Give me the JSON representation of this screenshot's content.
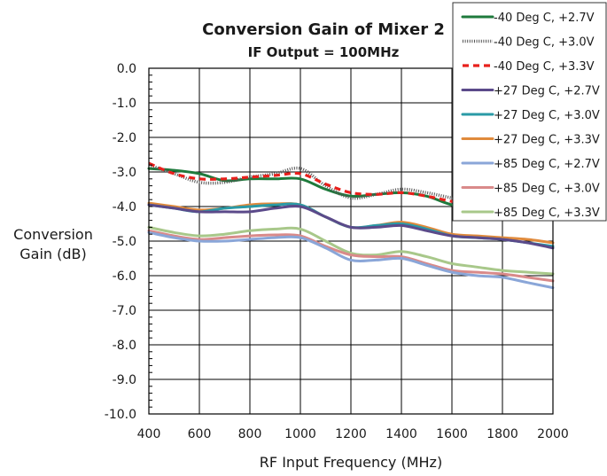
{
  "chart_data": {
    "type": "line",
    "title": "Conversion Gain of Mixer 2",
    "subtitle": "IF Output = 100MHz",
    "xlabel": "RF Input Frequency (MHz)",
    "ylabel_line1": "Conversion",
    "ylabel_line2": "Gain (dB)",
    "xlim": [
      400,
      2000
    ],
    "ylim": [
      -10,
      0
    ],
    "x_ticks": [
      400,
      600,
      800,
      1000,
      1200,
      1400,
      1600,
      1800,
      2000
    ],
    "y_ticks": [
      0,
      -1,
      -2,
      -3,
      -4,
      -5,
      -6,
      -7,
      -8,
      -9,
      -10
    ],
    "x_tick_labels": [
      "400",
      "600",
      "800",
      "1000",
      "1200",
      "1400",
      "1600",
      "1800",
      "2000"
    ],
    "y_tick_labels": [
      "0.0",
      "-1.0",
      "-2.0",
      "-3.0",
      "-4.0",
      "-5.0",
      "-6.0",
      "-7.0",
      "-8.0",
      "-9.0",
      "-10.0"
    ],
    "grid": true,
    "legend_position": "top-right",
    "x": [
      400,
      500,
      600,
      700,
      800,
      900,
      1000,
      1100,
      1200,
      1300,
      1400,
      1500,
      1600,
      1700,
      1800,
      1900,
      2000
    ],
    "series": [
      {
        "name": "-40 Deg C, +2.7V",
        "color": "#1e7a3c",
        "style": "solid",
        "values": [
          -2.9,
          -2.95,
          -3.05,
          -3.25,
          -3.2,
          -3.2,
          -3.2,
          -3.5,
          -3.7,
          -3.65,
          -3.6,
          -3.7,
          -3.95,
          -4.05,
          -4.15,
          -4.25,
          -4.3
        ]
      },
      {
        "name": "-40 Deg C, +3.0V",
        "color": "#555555",
        "style": "dotted",
        "values": [
          -2.8,
          -3.05,
          -3.3,
          -3.3,
          -3.15,
          -3.05,
          -2.9,
          -3.4,
          -3.75,
          -3.65,
          -3.5,
          -3.6,
          -3.75,
          -3.85,
          -3.95,
          -4.05,
          -4.1
        ]
      },
      {
        "name": "-40 Deg C, +3.3V",
        "color": "#e8201c",
        "style": "dashed",
        "values": [
          -2.75,
          -3.05,
          -3.2,
          -3.2,
          -3.15,
          -3.1,
          -3.05,
          -3.35,
          -3.6,
          -3.65,
          -3.6,
          -3.7,
          -3.85,
          -3.95,
          -4.05,
          -4.1,
          -4.15
        ]
      },
      {
        "name": "+27 Deg C, +2.7V",
        "color": "#5b4a8a",
        "style": "solid",
        "values": [
          -3.95,
          -4.05,
          -4.15,
          -4.15,
          -4.15,
          -4.05,
          -4.0,
          -4.3,
          -4.6,
          -4.6,
          -4.55,
          -4.7,
          -4.85,
          -4.9,
          -4.95,
          -5.05,
          -5.2
        ]
      },
      {
        "name": "+27 Deg C, +3.0V",
        "color": "#2a9aa6",
        "style": "solid",
        "values": [
          -3.95,
          -4.05,
          -4.15,
          -4.05,
          -4.0,
          -3.95,
          -3.95,
          -4.3,
          -4.6,
          -4.55,
          -4.5,
          -4.65,
          -4.85,
          -4.9,
          -4.95,
          -5.05,
          -5.15
        ]
      },
      {
        "name": "+27 Deg C, +3.3V",
        "color": "#e08a3c",
        "style": "solid",
        "values": [
          -3.9,
          -4.0,
          -4.1,
          -4.05,
          -3.95,
          -3.92,
          -3.95,
          -4.3,
          -4.6,
          -4.55,
          -4.45,
          -4.6,
          -4.8,
          -4.85,
          -4.9,
          -4.95,
          -5.05
        ]
      },
      {
        "name": "+85 Deg C, +2.7V",
        "color": "#8aa6d8",
        "style": "solid",
        "values": [
          -4.75,
          -4.9,
          -5.0,
          -5.0,
          -4.95,
          -4.9,
          -4.9,
          -5.2,
          -5.55,
          -5.55,
          -5.5,
          -5.7,
          -5.9,
          -6.0,
          -6.05,
          -6.2,
          -6.35
        ]
      },
      {
        "name": "+85 Deg C, +3.0V",
        "color": "#d98a8a",
        "style": "solid",
        "values": [
          -4.7,
          -4.85,
          -4.95,
          -4.9,
          -4.85,
          -4.82,
          -4.85,
          -5.15,
          -5.4,
          -5.45,
          -5.45,
          -5.65,
          -5.85,
          -5.9,
          -5.95,
          -6.05,
          -6.15
        ]
      },
      {
        "name": "+85 Deg C, +3.3V",
        "color": "#a8c88a",
        "style": "solid",
        "values": [
          -4.6,
          -4.75,
          -4.85,
          -4.8,
          -4.7,
          -4.65,
          -4.65,
          -5.0,
          -5.35,
          -5.4,
          -5.3,
          -5.45,
          -5.65,
          -5.75,
          -5.85,
          -5.9,
          -5.95
        ]
      }
    ]
  }
}
